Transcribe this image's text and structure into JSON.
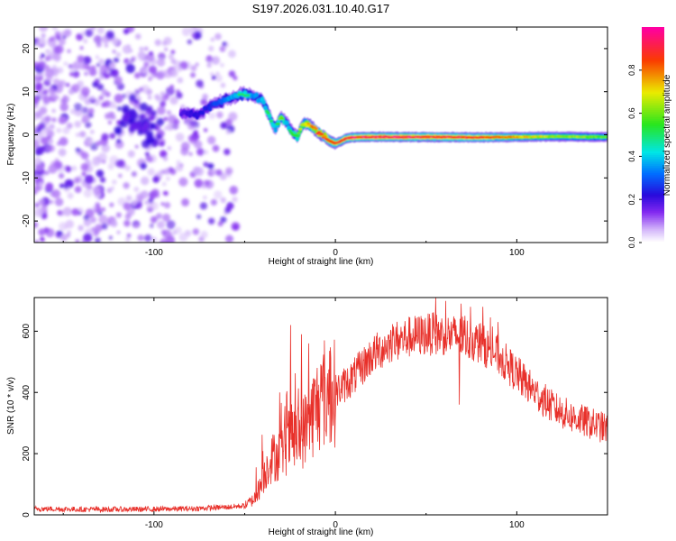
{
  "title": "S197.2026.031.10.40.G17",
  "chart_data": [
    {
      "type": "heatmap",
      "name": "spectrogram",
      "xlabel": "Height of straight line (km)",
      "ylabel": "Frequency (Hz)",
      "xlim": [
        -166,
        150
      ],
      "ylim": [
        -25,
        25
      ],
      "xticks": [
        -100,
        0,
        100
      ],
      "yticks": [
        20,
        10,
        0,
        -10,
        -20
      ],
      "xtick_labels": [
        "-100",
        "0",
        "100"
      ],
      "ytick_labels": [
        "20",
        "10",
        "0",
        "-10",
        "-20"
      ],
      "colorbar": {
        "label": "Normalized spectral amplitude",
        "range": [
          0.0,
          1.0
        ],
        "ticks": [
          0.0,
          0.2,
          0.4,
          0.6,
          0.8
        ],
        "tick_labels": [
          "0.0",
          "0.2",
          "0.4",
          "0.6",
          "0.8"
        ]
      },
      "ridge": {
        "x": [
          -85,
          -75,
          -70,
          -62,
          -55,
          -50,
          -45,
          -40,
          -36,
          -33,
          -30,
          -27,
          -24,
          -21,
          -18,
          -15,
          -12,
          -9,
          -6,
          -3,
          0,
          3,
          6,
          10,
          15,
          25,
          50,
          80,
          100,
          120,
          140,
          150
        ],
        "y": [
          5,
          4.5,
          6.5,
          8,
          9,
          9.5,
          9,
          8,
          4,
          1.5,
          4,
          3,
          0.5,
          -0.5,
          2.5,
          2.5,
          1.5,
          0.5,
          -0.5,
          -1.5,
          -2,
          -1.5,
          -0.8,
          -0.6,
          -0.5,
          -0.5,
          -0.5,
          -0.6,
          -0.5,
          -0.4,
          -0.5,
          -0.5
        ],
        "amplitude": [
          0.2,
          0.25,
          0.3,
          0.4,
          0.5,
          0.55,
          0.45,
          0.5,
          0.55,
          0.5,
          0.65,
          0.5,
          0.55,
          0.6,
          0.75,
          0.8,
          0.85,
          0.9,
          0.9,
          0.92,
          0.9,
          0.95,
          0.95,
          1.0,
          1.0,
          1.0,
          1.0,
          0.95,
          0.8,
          0.7,
          0.65,
          0.6
        ]
      },
      "noise_region_x": [
        -166,
        -55
      ],
      "noise_amplitude_range": [
        0.0,
        0.2
      ]
    },
    {
      "type": "line",
      "name": "snr",
      "xlabel": "Height of straight line (km)",
      "ylabel": "SNR (10 * v/v)",
      "xlim": [
        -166,
        150
      ],
      "ylim": [
        0,
        710
      ],
      "xticks": [
        -100,
        0,
        100
      ],
      "yticks": [
        0,
        200,
        400,
        600
      ],
      "xtick_labels": [
        "-100",
        "0",
        "100"
      ],
      "ytick_labels": [
        "0",
        "200",
        "400",
        "600"
      ],
      "color": "#e8302a",
      "envelope": {
        "x": [
          -166,
          -140,
          -110,
          -80,
          -60,
          -50,
          -45,
          -40,
          -37,
          -34,
          -30,
          -26,
          -24,
          -22,
          -20,
          -15,
          -10,
          -5,
          0,
          10,
          20,
          30,
          40,
          50,
          60,
          70,
          80,
          90,
          100,
          110,
          120,
          130,
          140,
          150
        ],
        "y": [
          20,
          18,
          18,
          20,
          25,
          30,
          50,
          110,
          170,
          190,
          200,
          240,
          250,
          255,
          250,
          300,
          360,
          390,
          400,
          450,
          520,
          560,
          580,
          590,
          590,
          580,
          560,
          520,
          460,
          400,
          350,
          320,
          300,
          280
        ]
      },
      "spikes": [
        {
          "x": -25,
          "y": 620
        },
        {
          "x": -19,
          "y": 590
        },
        {
          "x": -15,
          "y": 560
        },
        {
          "x": 55,
          "y": 710
        },
        {
          "x": 69,
          "y": 690
        },
        {
          "x": 81,
          "y": 680
        },
        {
          "x": 68,
          "y": 360
        }
      ]
    }
  ]
}
